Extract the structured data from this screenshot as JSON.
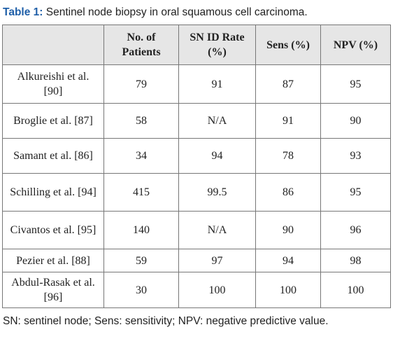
{
  "caption": {
    "label": "Table 1:",
    "text": "Sentinel node biopsy in oral squamous cell carcinoma."
  },
  "table": {
    "header": [
      "",
      "No. of Patients",
      "SN ID Rate (%)",
      "Sens (%)",
      "NPV (%)"
    ],
    "rows": [
      [
        "Alkureishi et al. [90]",
        "79",
        "91",
        "87",
        "95"
      ],
      [
        "Broglie et al. [87]",
        "58",
        "N/A",
        "91",
        "90"
      ],
      [
        "Samant et al. [86]",
        "34",
        "94",
        "78",
        "93"
      ],
      [
        "Schilling et al. [94]",
        "415",
        "99.5",
        "86",
        "95"
      ],
      [
        "Civantos et al. [95]",
        "140",
        "N/A",
        "90",
        "96"
      ],
      [
        "Pezier et al. [88]",
        "59",
        "97",
        "94",
        "98"
      ],
      [
        "Abdul-Rasak et al. [96]",
        "30",
        "100",
        "100",
        "100"
      ]
    ]
  },
  "footnote": "SN: sentinel node; Sens: sensitivity; NPV: negative predictive value."
}
